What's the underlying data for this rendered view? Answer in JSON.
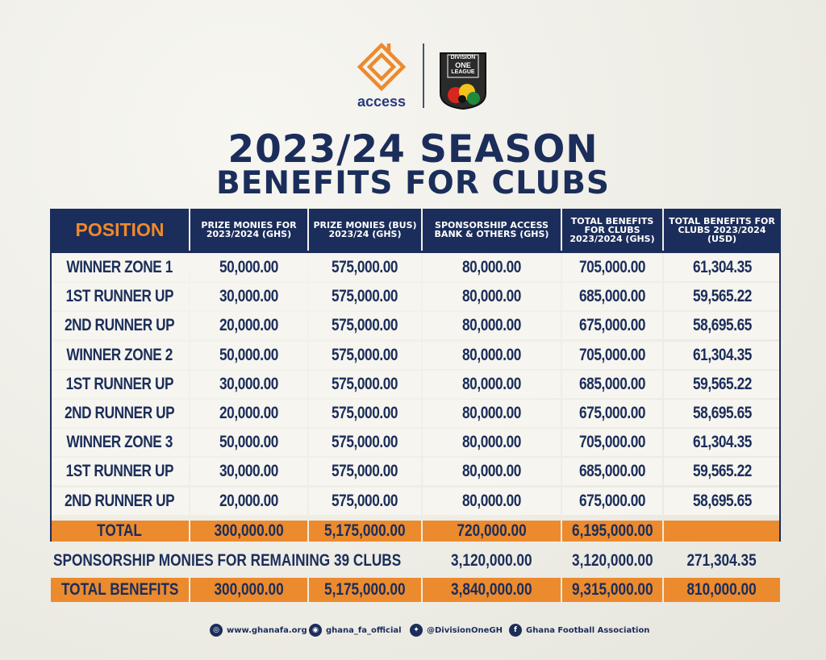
{
  "brand": {
    "access_word": "access",
    "league_badge_lines": [
      "DIVISION",
      "ONE",
      "LEAGUE"
    ]
  },
  "title": {
    "line1": "2023/24 SEASON",
    "line2": "BENEFITS FOR CLUBS"
  },
  "table": {
    "headers": [
      "POSITION",
      "PRIZE MONIES FOR 2023/2024 (GHS)",
      "PRIZE MONIES (BUS) 2023/24 (GHS)",
      "SPONSORSHIP ACCESS BANK & OTHERS (GHS)",
      "TOTAL BENEFITS FOR CLUBS 2023/2024 (GHS)",
      "TOTAL BENEFITS FOR CLUBS 2023/2024 (USD)"
    ],
    "rows": [
      [
        "WINNER ZONE 1",
        "50,000.00",
        "575,000.00",
        "80,000.00",
        "705,000.00",
        "61,304.35"
      ],
      [
        "1ST RUNNER UP",
        "30,000.00",
        "575,000.00",
        "80,000.00",
        "685,000.00",
        "59,565.22"
      ],
      [
        "2ND RUNNER UP",
        "20,000.00",
        "575,000.00",
        "80,000.00",
        "675,000.00",
        "58,695.65"
      ],
      [
        "WINNER ZONE 2",
        "50,000.00",
        "575,000.00",
        "80,000.00",
        "705,000.00",
        "61,304.35"
      ],
      [
        "1ST RUNNER UP",
        "30,000.00",
        "575,000.00",
        "80,000.00",
        "685,000.00",
        "59,565.22"
      ],
      [
        "2ND RUNNER UP",
        "20,000.00",
        "575,000.00",
        "80,000.00",
        "675,000.00",
        "58,695.65"
      ],
      [
        "WINNER ZONE 3",
        "50,000.00",
        "575,000.00",
        "80,000.00",
        "705,000.00",
        "61,304.35"
      ],
      [
        "1ST RUNNER UP",
        "30,000.00",
        "575,000.00",
        "80,000.00",
        "685,000.00",
        "59,565.22"
      ],
      [
        "2ND RUNNER UP",
        "20,000.00",
        "575,000.00",
        "80,000.00",
        "675,000.00",
        "58,695.65"
      ]
    ],
    "total_row": [
      "TOTAL",
      "300,000.00",
      "5,175,000.00",
      "720,000.00",
      "6,195,000.00",
      ""
    ],
    "sponsorship_row": {
      "label": "SPONSORSHIP MONIES FOR REMAINING 39 CLUBS",
      "sponsorship_ghs": "3,120,000.00",
      "total_ghs": "3,120,000.00",
      "total_usd": "271,304.35"
    },
    "grand_total_row": [
      "TOTAL BENEFITS",
      "300,000.00",
      "5,175,000.00",
      "3,840,000.00",
      "9,315,000.00",
      "810,000.00"
    ]
  },
  "footer": {
    "website": "www.ghanafa.org",
    "instagram": "ghana_fa_official",
    "twitter": "@DivisionOneGH",
    "facebook": "Ghana Football Association"
  },
  "colors": {
    "navy": "#1b2d5a",
    "orange": "#ec8a2e",
    "cell_bg": "#f6f5ef"
  }
}
